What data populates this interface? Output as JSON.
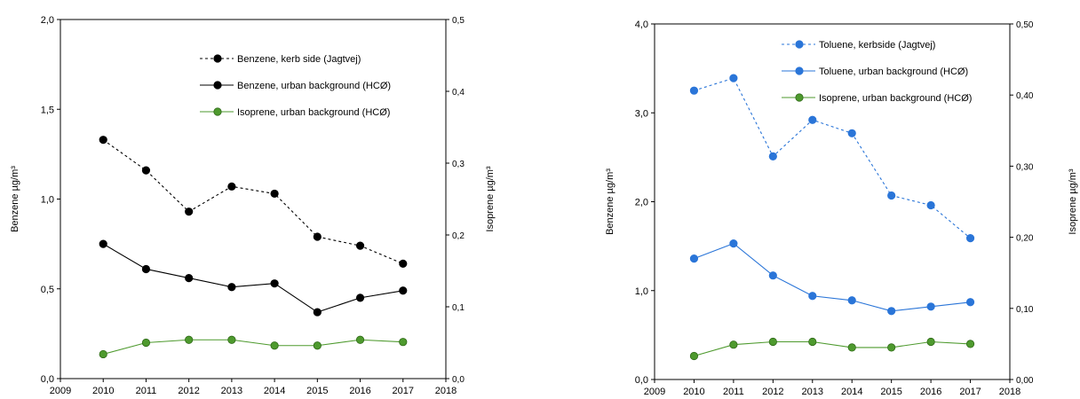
{
  "chart_data": [
    {
      "type": "line",
      "x": [
        2010,
        2011,
        2012,
        2013,
        2014,
        2015,
        2016,
        2017
      ],
      "xlim": [
        2009,
        2018
      ],
      "xticks": [
        "2009",
        "2010",
        "2011",
        "2012",
        "2013",
        "2014",
        "2015",
        "2016",
        "2017",
        "2018"
      ],
      "ylabel": "Benzene µg/m³",
      "ylim": [
        0,
        2.0
      ],
      "yticks": [
        "0,0",
        "0,5",
        "1,0",
        "1,5",
        "2,0"
      ],
      "y2label": "Isoprene µg/m³",
      "y2lim": [
        0,
        0.5
      ],
      "y2ticks": [
        "0,0",
        "0,1",
        "0,2",
        "0,3",
        "0,4",
        "0,5"
      ],
      "legend_position": "top-right",
      "grid": false,
      "series": [
        {
          "name": "Benzene, kerb side (Jagtvej)",
          "axis": "left",
          "dashed": true,
          "color": "#000000",
          "values": [
            1.33,
            1.16,
            0.93,
            1.07,
            1.03,
            0.79,
            0.74,
            0.64
          ]
        },
        {
          "name": "Benzene, urban background (HCØ)",
          "axis": "left",
          "dashed": false,
          "color": "#000000",
          "values": [
            0.75,
            0.61,
            0.56,
            0.51,
            0.53,
            0.37,
            0.45,
            0.49
          ]
        },
        {
          "name": "Isoprene, urban background (HCØ)",
          "axis": "right",
          "dashed": false,
          "color": "#4e9a2e",
          "values": [
            0.034,
            0.05,
            0.054,
            0.054,
            0.046,
            0.046,
            0.054,
            0.051
          ]
        }
      ]
    },
    {
      "type": "line",
      "x": [
        2010,
        2011,
        2012,
        2013,
        2014,
        2015,
        2016,
        2017
      ],
      "xlim": [
        2009,
        2018
      ],
      "xticks": [
        "2009",
        "2010",
        "2011",
        "2012",
        "2013",
        "2014",
        "2015",
        "2016",
        "2017",
        "2018"
      ],
      "ylabel": "Benzene µg/m³",
      "ylim": [
        0,
        4.0
      ],
      "yticks": [
        "0,0",
        "1,0",
        "2,0",
        "3,0",
        "4,0"
      ],
      "y2label": "Isoprene µg/m³",
      "y2lim": [
        0,
        0.5
      ],
      "y2ticks": [
        "0,00",
        "0,10",
        "0,20",
        "0,30",
        "0,40",
        "0,50"
      ],
      "legend_position": "top-right",
      "grid": false,
      "series": [
        {
          "name": "Toluene, kerbside (Jagtvej)",
          "axis": "left",
          "dashed": true,
          "color": "#2a75d8",
          "values": [
            3.25,
            3.39,
            2.51,
            2.92,
            2.77,
            2.07,
            1.96,
            1.59
          ]
        },
        {
          "name": "Toluene, urban background (HCØ)",
          "axis": "left",
          "dashed": false,
          "color": "#2a75d8",
          "values": [
            1.36,
            1.53,
            1.17,
            0.94,
            0.89,
            0.77,
            0.82,
            0.87
          ]
        },
        {
          "name": "Isoprene, urban background (HCØ)",
          "axis": "right",
          "dashed": false,
          "color": "#4e9a2e",
          "values": [
            0.033,
            0.049,
            0.053,
            0.053,
            0.045,
            0.045,
            0.053,
            0.05
          ]
        }
      ]
    }
  ]
}
